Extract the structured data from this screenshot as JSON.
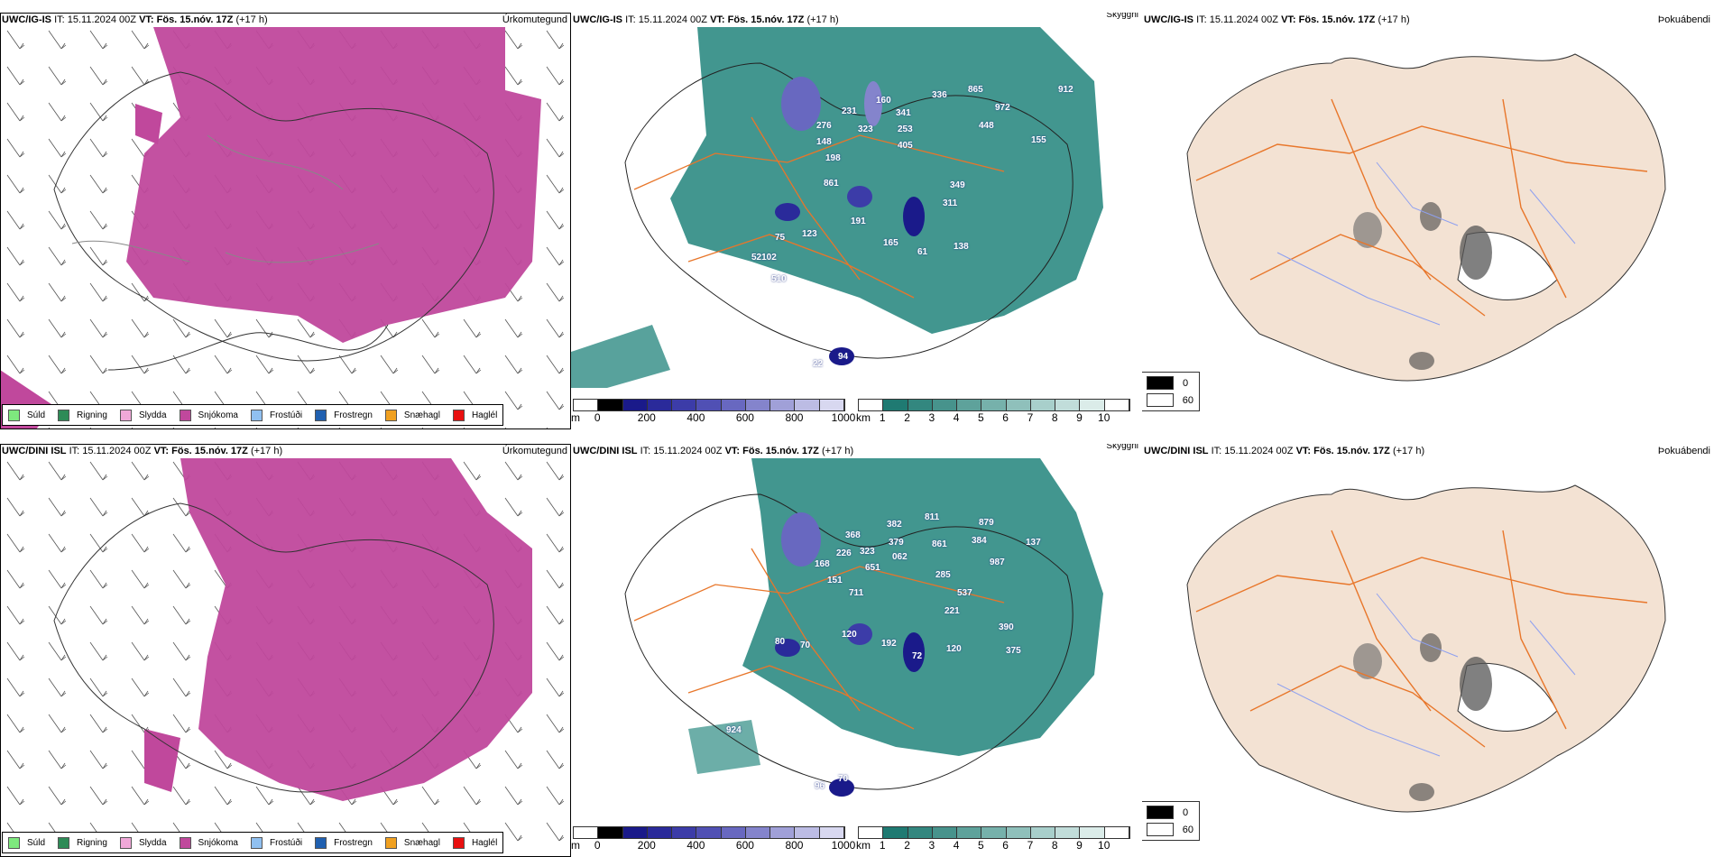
{
  "rows": [
    {
      "model": "UWC/IG-IS",
      "it_label": "IT:",
      "it_value": "15.11.2024 00Z",
      "vt_label": "VT:",
      "vt_value": "Fös. 15.nóv. 17Z",
      "lead": "(+17 h)",
      "visibility_labels": [
        "160",
        "231",
        "336",
        "865",
        "972",
        "912",
        "276",
        "323",
        "341",
        "253",
        "448",
        "148",
        "405",
        "155",
        "198",
        "861",
        "349",
        "311",
        "191",
        "75",
        "123",
        "165",
        "61",
        "138",
        "52102",
        "510",
        "22",
        "94"
      ]
    },
    {
      "model": "UWC/DINI ISL",
      "it_label": "IT:",
      "it_value": "15.11.2024 00Z",
      "vt_label": "VT:",
      "vt_value": "Fös. 15.nóv. 17Z",
      "lead": "(+17 h)",
      "visibility_labels": [
        "368",
        "382",
        "811",
        "879",
        "323",
        "379",
        "861",
        "384",
        "168",
        "226",
        "651",
        "062",
        "137",
        "151",
        "711",
        "987",
        "285",
        "537",
        "221",
        "80",
        "70",
        "120",
        "192",
        "72",
        "120",
        "390",
        "375",
        "924",
        "96",
        "70"
      ]
    }
  ],
  "panels": {
    "precip_type": {
      "title": "Úrkomutegund",
      "legend": [
        {
          "label": "Súld",
          "color": "#7ee87e"
        },
        {
          "label": "Rigning",
          "color": "#2e8b57"
        },
        {
          "label": "Slydda",
          "color": "#f0a8d8"
        },
        {
          "label": "Snjókoma",
          "color": "#c0489c"
        },
        {
          "label": "Frostúði",
          "color": "#90c0f0"
        },
        {
          "label": "Frostregn",
          "color": "#2060b0"
        },
        {
          "label": "Snæhagl",
          "color": "#f0a020"
        },
        {
          "label": "Haglél",
          "color": "#e81010"
        }
      ]
    },
    "visibility": {
      "title": "Skyggni",
      "cloudbase_unit": "m",
      "cloudbase_ticks": [
        "0",
        "200",
        "400",
        "600",
        "800",
        "1000"
      ],
      "cloudbase_colors": [
        "#000000",
        "#1a1a8a",
        "#2a2a9a",
        "#3c3ca8",
        "#5050b4",
        "#6868c0",
        "#8484cc",
        "#a0a0d8",
        "#bcbce4",
        "#d8d8f0"
      ],
      "visibility_unit": "km",
      "visibility_ticks": [
        "1",
        "2",
        "3",
        "4",
        "5",
        "6",
        "7",
        "8",
        "9",
        "10"
      ],
      "visibility_colors": [
        "#1f7a72",
        "#33877f",
        "#47938c",
        "#5ea29b",
        "#76b1ab",
        "#8fc0bb",
        "#a8cfcb",
        "#c1ddda",
        "#dbece9",
        "#ffffff"
      ]
    },
    "fog": {
      "title": "Þokuábendi",
      "legend": [
        {
          "label": "0",
          "color": "#000000"
        },
        {
          "label": "60",
          "color": "#ffffff"
        }
      ]
    }
  },
  "colors": {
    "snow": "#c0489c",
    "teal": "#2e8b83",
    "land_fog": "#f3e2d3",
    "roads": "#e8762a",
    "rivers": "#8ea0f0"
  }
}
